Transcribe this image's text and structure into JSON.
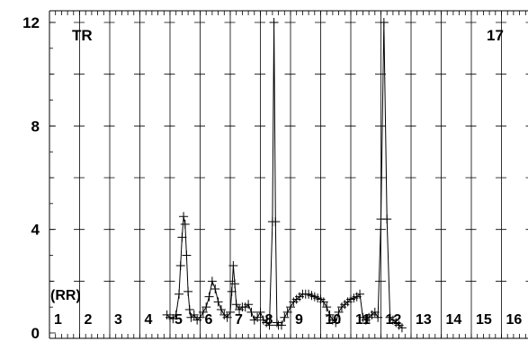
{
  "chart_data": {
    "type": "line",
    "corner_left": "TR",
    "corner_right": "17",
    "row_label": "(RR)",
    "ylim": [
      0,
      12.2
    ],
    "yticks": [
      {
        "value": 0,
        "label": "0"
      },
      {
        "value": 4,
        "label": "4"
      },
      {
        "value": 8,
        "label": "8"
      },
      {
        "value": 12,
        "label": "12"
      }
    ],
    "y_gridlines": [
      2,
      4,
      6,
      8,
      10,
      12
    ],
    "column_labels": [
      "1",
      "2",
      "3",
      "4",
      "5",
      "6",
      "7",
      "8",
      "9",
      "10",
      "11",
      "12",
      "13",
      "14",
      "15",
      "16"
    ],
    "series": [
      {
        "x": [
          3.9,
          4.0,
          4.1,
          4.2,
          4.3,
          4.35,
          4.4,
          4.45,
          4.5,
          4.55,
          4.6,
          4.65,
          4.7,
          4.8,
          4.9,
          5.0,
          5.1,
          5.2,
          5.3,
          5.4,
          5.5,
          5.6,
          5.7,
          5.8,
          5.9,
          6.0,
          6.05,
          6.1,
          6.15,
          6.2,
          6.3,
          6.4,
          6.5,
          6.6,
          6.7,
          6.8,
          6.9,
          7.0,
          7.1,
          7.2,
          7.3,
          7.4,
          7.45,
          7.5,
          7.55,
          7.6,
          7.7,
          7.8,
          7.9,
          8.0,
          8.1,
          8.2,
          8.3,
          8.4,
          8.5,
          8.6,
          8.7,
          8.8,
          8.9,
          9.0,
          9.1,
          9.2,
          9.3,
          9.4,
          9.5,
          9.6,
          9.7,
          9.8,
          9.9,
          10.0,
          10.1,
          10.2,
          10.3,
          10.4,
          10.5,
          10.6,
          10.7,
          10.8,
          10.9,
          11.0,
          11.1,
          11.2,
          11.3,
          11.4,
          11.5,
          11.6,
          11.7
        ],
        "y": [
          0.7,
          0.6,
          0.55,
          0.7,
          1.5,
          2.6,
          3.7,
          4.5,
          4.2,
          3.0,
          1.6,
          0.9,
          0.6,
          0.7,
          0.5,
          0.6,
          0.8,
          1.0,
          1.4,
          2.0,
          1.7,
          1.2,
          0.9,
          0.7,
          0.6,
          0.8,
          1.6,
          2.6,
          1.9,
          1.1,
          0.9,
          1.0,
          1.0,
          1.1,
          0.8,
          0.5,
          0.6,
          0.8,
          0.5,
          0.4,
          0.3,
          4.3,
          12.0,
          4.3,
          0.4,
          0.3,
          0.3,
          0.6,
          0.8,
          1.0,
          1.2,
          1.3,
          1.4,
          1.5,
          1.5,
          1.5,
          1.45,
          1.4,
          1.35,
          1.3,
          1.2,
          1.0,
          0.7,
          0.5,
          0.4,
          0.8,
          1.0,
          1.1,
          1.2,
          1.3,
          1.35,
          1.4,
          1.5,
          0.6,
          0.5,
          0.6,
          0.7,
          0.8,
          0.6,
          4.4,
          12.0,
          4.4,
          0.6,
          0.5,
          0.4,
          0.3,
          0.2
        ]
      }
    ]
  }
}
